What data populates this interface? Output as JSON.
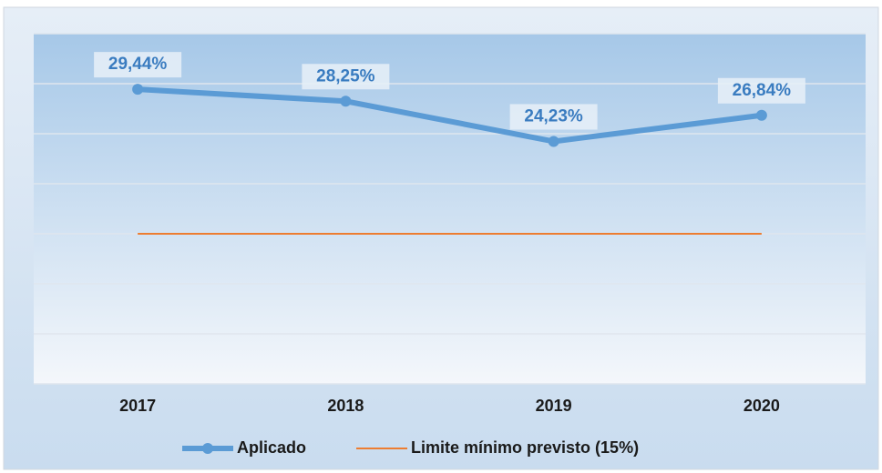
{
  "chart_data": {
    "type": "line",
    "categories": [
      "2017",
      "2018",
      "2019",
      "2020"
    ],
    "series": [
      {
        "name": "Aplicado",
        "color": "#5b9bd5",
        "values": [
          29.44,
          28.25,
          24.23,
          26.84
        ],
        "value_labels": [
          "29,44%",
          "28,25%",
          "24,23%",
          "26,84%"
        ]
      },
      {
        "name": "Limite mínimo previsto (15%)",
        "color": "#ed7d31",
        "values": [
          15,
          15,
          15,
          15
        ]
      }
    ],
    "ylim": [
      0,
      35
    ],
    "yticks": [
      0,
      5,
      10,
      15,
      20,
      25,
      30,
      35
    ],
    "grid": true,
    "legend": "bottom"
  }
}
